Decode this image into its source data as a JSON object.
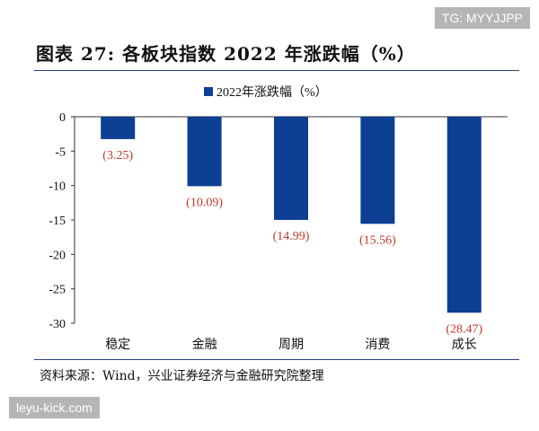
{
  "header": {
    "title": "图表 27:  各板块指数 2022 年涨跌幅（%）"
  },
  "footer": {
    "source": "资料来源：Wind，兴业证券经济与金融研究院整理"
  },
  "watermarks": {
    "top": "TG: MYYJJPP",
    "bottom": "leyu-kick.com"
  },
  "chart_data": {
    "type": "bar",
    "categories": [
      "稳定",
      "金融",
      "周期",
      "消费",
      "成长"
    ],
    "series": [
      {
        "name": "2022年涨跌幅（%）",
        "values": [
          -3.25,
          -10.09,
          -14.99,
          -15.56,
          -28.47
        ]
      }
    ],
    "data_labels": [
      "(3.25)",
      "(10.09)",
      "(14.99)",
      "(15.56)",
      "(28.47)"
    ],
    "ylim": [
      -30,
      0
    ],
    "yticks": [
      0,
      -5,
      -10,
      -15,
      -20,
      -25,
      -30
    ],
    "legend_position": "top-center",
    "grid": false,
    "colors": {
      "bar": "#0d3f93",
      "label": "#c0392b",
      "axis": "#333333"
    }
  }
}
